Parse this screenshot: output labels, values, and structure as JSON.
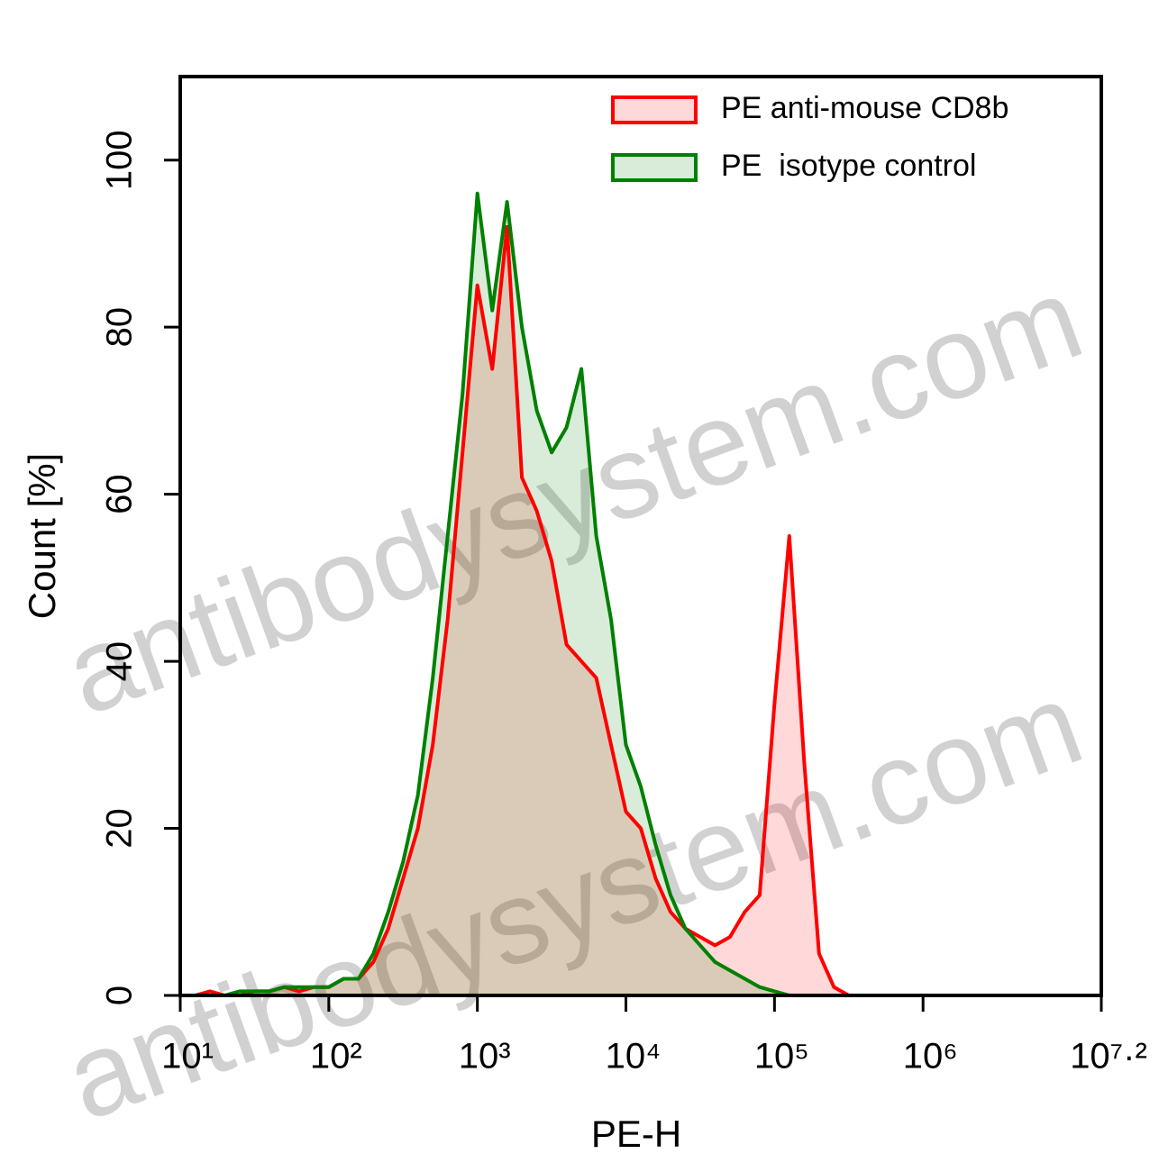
{
  "chart_data": {
    "type": "histogram-line",
    "x_label": "PE-H",
    "y_label": "Count [%]",
    "x_scale": "log",
    "xlim": [
      10,
      15848932
    ],
    "ylim": [
      0,
      110
    ],
    "xticks": [
      {
        "value": 10,
        "label": "10¹"
      },
      {
        "value": 100,
        "label": "10²"
      },
      {
        "value": 1000,
        "label": "10³"
      },
      {
        "value": 10000,
        "label": "10⁴"
      },
      {
        "value": 100000,
        "label": "10⁵"
      },
      {
        "value": 1000000,
        "label": "10⁶"
      },
      {
        "value": 15848932,
        "label": "10⁷·²"
      }
    ],
    "yticks": [
      0,
      20,
      40,
      60,
      80,
      100
    ],
    "legend": "upper right",
    "watermarks": [
      "antibodysystem.com",
      "antibodysystem.com"
    ],
    "x": [
      10,
      12.59,
      15.85,
      19.95,
      25.12,
      31.62,
      39.81,
      50.12,
      63.1,
      79.43,
      100,
      125.9,
      158.5,
      199.5,
      251.2,
      316.2,
      398.1,
      501.2,
      631,
      794.3,
      1000,
      1259,
      1585,
      1995,
      2512,
      3162,
      3981,
      5012,
      6310,
      7943,
      10000,
      12589,
      15849,
      19953,
      25119,
      31623,
      39811,
      50119,
      63096,
      79433,
      100000,
      125893,
      158489,
      199526,
      251189,
      316228,
      398107
    ],
    "series": [
      {
        "name": "PE anti-mouse CD8b",
        "color": "#ff0000",
        "values": [
          0,
          0,
          0.5,
          0,
          0,
          0.5,
          0.5,
          1,
          0.5,
          1,
          1,
          2,
          2,
          4,
          8,
          14,
          20,
          30,
          45,
          65,
          85,
          75,
          92,
          62,
          58,
          52,
          42,
          40,
          38,
          30,
          22,
          20,
          14,
          10,
          8,
          7,
          6,
          7,
          10,
          12,
          35,
          55,
          28,
          5,
          1,
          0,
          0
        ]
      },
      {
        "name": "PE  isotype control",
        "color": "#008000",
        "values": [
          0,
          0,
          0,
          0,
          0.5,
          0.5,
          0.5,
          1,
          1,
          1,
          1,
          2,
          2,
          5,
          10,
          16,
          24,
          38,
          55,
          72,
          96,
          82,
          95,
          80,
          70,
          65,
          68,
          75,
          55,
          45,
          30,
          25,
          18,
          12,
          8,
          6,
          4,
          3,
          2,
          1,
          0.5,
          0,
          0,
          0,
          0,
          0,
          0
        ]
      }
    ]
  }
}
